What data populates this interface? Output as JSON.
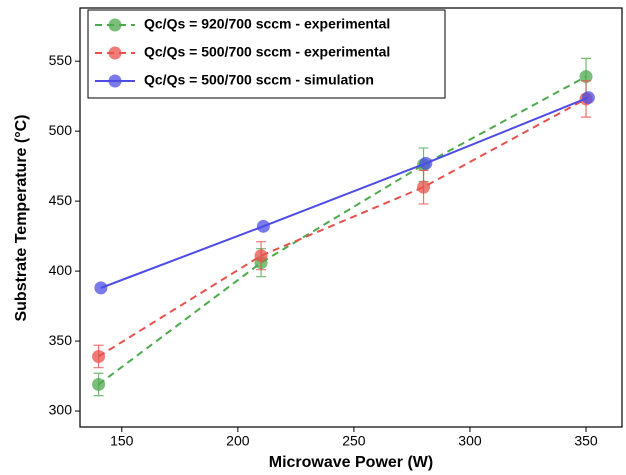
{
  "chart_data": {
    "type": "line",
    "xlabel": "Microwave Power (W)",
    "ylabel": "Substrate Temperature (°C)",
    "xlim": [
      132,
      365.5
    ],
    "ylim": [
      288.6,
      588
    ],
    "xticks": [
      150,
      200,
      250,
      300,
      350
    ],
    "yticks": [
      300,
      350,
      400,
      450,
      500,
      550
    ],
    "legend": "upper-left",
    "series": [
      {
        "name": "Qc/Qs = 920/700 sccm - experimental",
        "color": "#4caa4c",
        "dashed": true,
        "x": [
          140,
          210,
          280,
          350
        ],
        "values": [
          319,
          406,
          476,
          539
        ],
        "errors": [
          8,
          10,
          12,
          13
        ]
      },
      {
        "name": "Qc/Qs = 500/700 sccm - experimental",
        "color": "#e8514c",
        "dashed": true,
        "x": [
          140,
          210,
          280,
          350
        ],
        "values": [
          339,
          411,
          460,
          523
        ],
        "errors": [
          8,
          10,
          12,
          13
        ]
      },
      {
        "name": "Qc/Qs = 500/700 sccm - simulation",
        "color": "#4d4de6",
        "dashed": false,
        "x": [
          141,
          211,
          281,
          351
        ],
        "values": [
          388,
          432,
          477,
          524
        ]
      }
    ]
  }
}
